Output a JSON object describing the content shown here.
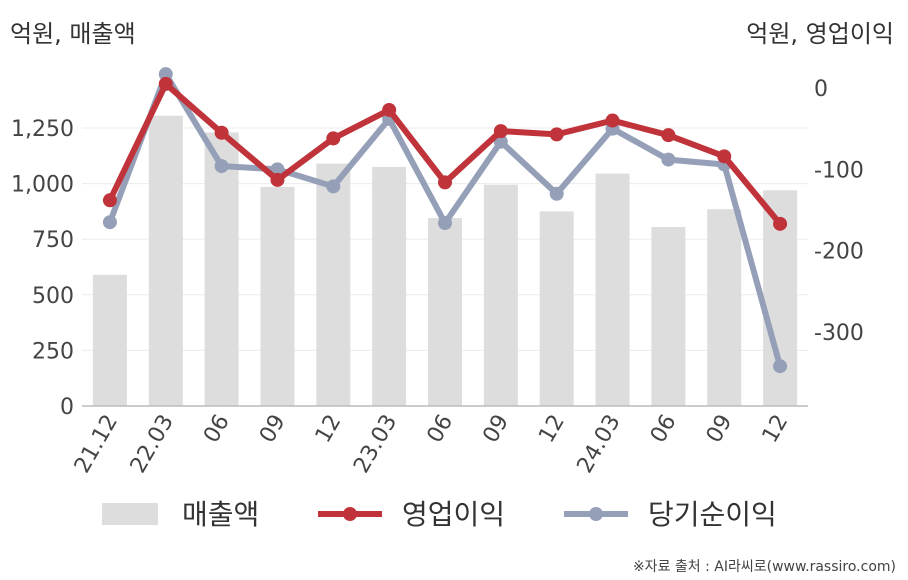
{
  "unit_left": "억원, 매출액",
  "unit_right": "억원, 영업이익",
  "source": "※자료 출처 : AI라씨로(www.rassiro.com)",
  "chart_data": {
    "type": "bar+line",
    "categories": [
      "21.12",
      "22.03",
      "06",
      "09",
      "12",
      "23.03",
      "06",
      "09",
      "12",
      "24.03",
      "06",
      "09",
      "12"
    ],
    "left_axis": {
      "ylim": [
        0,
        1500
      ],
      "ticks": [
        0,
        250,
        500,
        750,
        "1,000",
        "1,250"
      ],
      "tick_values": [
        0,
        250,
        500,
        750,
        1000,
        1250
      ]
    },
    "right_axis": {
      "ylim": [
        -400,
        20
      ],
      "ticks": [
        0,
        -100,
        -200,
        -300
      ],
      "tick_values": [
        0,
        -100,
        -200,
        -300
      ]
    },
    "series": [
      {
        "name": "매출액",
        "type": "bar",
        "axis": "left",
        "color": "#dddddd",
        "values": [
          590,
          1305,
          1230,
          985,
          1090,
          1075,
          845,
          995,
          875,
          1045,
          805,
          885,
          970
        ]
      },
      {
        "name": "영업이익",
        "type": "line",
        "axis": "right",
        "color": "#c0333a",
        "values": [
          -138,
          5,
          -55,
          -113,
          -62,
          -27,
          -116,
          -53,
          -57,
          -40,
          -58,
          -84,
          -167
        ]
      },
      {
        "name": "당기순이익",
        "type": "line",
        "axis": "right",
        "color": "#95a0b8",
        "values": [
          -165,
          17,
          -96,
          -100,
          -121,
          -38,
          -166,
          -66,
          -130,
          -50,
          -88,
          -94,
          -342
        ]
      }
    ],
    "grid": true,
    "legend_position": "bottom"
  }
}
